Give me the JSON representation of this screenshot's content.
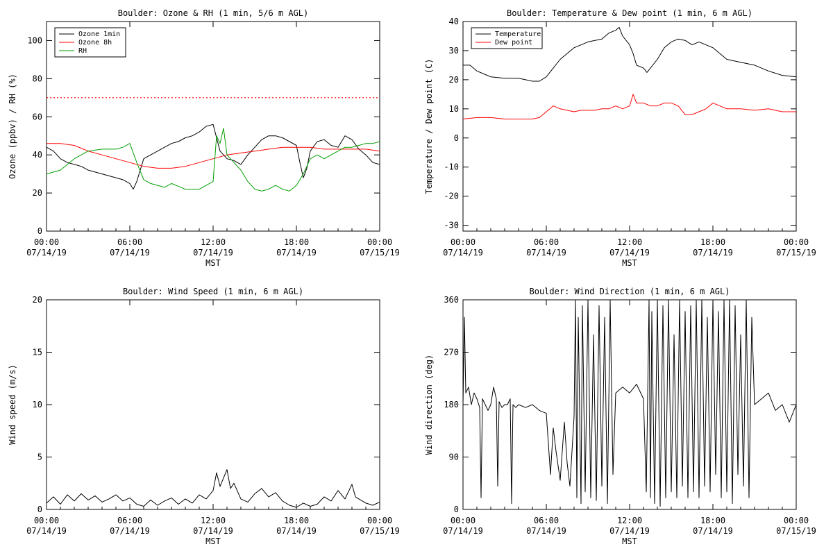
{
  "chart_data": [
    {
      "type": "line",
      "title": "Boulder: Ozone & RH (1 min, 5/6 m AGL)",
      "xlabel": "MST",
      "ylabel": "Ozone (ppbv) / RH (%)",
      "xlim": [
        0,
        24
      ],
      "ylim": [
        0,
        110
      ],
      "yticks": [
        0,
        20,
        40,
        60,
        80,
        100
      ],
      "xticks": [
        0,
        6,
        12,
        18,
        24
      ],
      "xtick_labels": [
        [
          "00:00",
          "07/14/19"
        ],
        [
          "06:00",
          "07/14/19"
        ],
        [
          "12:00",
          "07/14/19"
        ],
        [
          "18:00",
          "07/14/19"
        ],
        [
          "00:00",
          "07/15/19"
        ]
      ],
      "legend_position": "top-left",
      "reference_lines": [
        {
          "y": 70,
          "color": "#ff0000",
          "style": "dotted"
        }
      ],
      "series": [
        {
          "name": "Ozone 1min",
          "color": "#000000",
          "x": [
            0,
            0.5,
            1,
            1.5,
            2,
            2.5,
            3,
            3.5,
            4,
            4.5,
            5,
            5.5,
            6,
            6.25,
            6.5,
            7,
            7.5,
            8,
            8.5,
            9,
            9.5,
            10,
            10.5,
            11,
            11.5,
            12,
            12.5,
            13,
            13.5,
            14,
            14.5,
            15,
            15.5,
            16,
            16.5,
            17,
            17.5,
            18,
            18.25,
            18.5,
            18.75,
            19,
            19.5,
            20,
            20.5,
            21,
            21.5,
            22,
            22.5,
            23,
            23.5,
            24
          ],
          "y": [
            44,
            42,
            38,
            36,
            35,
            34,
            32,
            31,
            30,
            29,
            28,
            27,
            25,
            22,
            26,
            38,
            40,
            42,
            44,
            46,
            47,
            49,
            50,
            52,
            55,
            56,
            42,
            38,
            37,
            35,
            40,
            44,
            48,
            50,
            50,
            49,
            47,
            45,
            36,
            28,
            33,
            42,
            47,
            48,
            45,
            44,
            50,
            48,
            43,
            40,
            36,
            35
          ]
        },
        {
          "name": "Ozone 8h",
          "color": "#ff0000",
          "x": [
            0,
            1,
            2,
            3,
            4,
            5,
            6,
            7,
            8,
            9,
            10,
            11,
            12,
            13,
            14,
            15,
            16,
            17,
            18,
            19,
            20,
            21,
            22,
            23,
            24
          ],
          "y": [
            46,
            46,
            45,
            42,
            40,
            38,
            36,
            34,
            33,
            33,
            34,
            36,
            38,
            40,
            41,
            42,
            43,
            44,
            44,
            44,
            43,
            43,
            43,
            43,
            42
          ]
        },
        {
          "name": "RH",
          "color": "#00a000",
          "x": [
            0,
            1,
            2,
            3,
            4,
            5,
            5.5,
            6,
            6.5,
            7,
            7.5,
            8,
            8.5,
            9,
            10,
            11,
            11.5,
            12,
            12.25,
            12.5,
            12.75,
            13,
            13.5,
            14,
            14.5,
            15,
            15.5,
            16,
            16.5,
            17,
            17.5,
            18,
            18.5,
            19,
            19.5,
            20,
            20.5,
            21,
            21.5,
            22,
            22.5,
            23,
            23.5,
            24
          ],
          "y": [
            30,
            32,
            38,
            42,
            43,
            43,
            44,
            46,
            36,
            27,
            25,
            24,
            23,
            25,
            22,
            22,
            24,
            26,
            50,
            46,
            54,
            40,
            36,
            32,
            26,
            22,
            21,
            22,
            24,
            22,
            21,
            24,
            30,
            38,
            40,
            38,
            40,
            42,
            44,
            44,
            45,
            46,
            46,
            47
          ]
        }
      ]
    },
    {
      "type": "line",
      "title": "Boulder: Temperature & Dew point (1 min, 6 m AGL)",
      "xlabel": "MST",
      "ylabel": "Temperature / Dew point (C)",
      "xlim": [
        0,
        24
      ],
      "ylim": [
        -32,
        40
      ],
      "yticks": [
        -30,
        -20,
        -10,
        0,
        10,
        20,
        30,
        40
      ],
      "xticks": [
        0,
        6,
        12,
        18,
        24
      ],
      "xtick_labels": [
        [
          "00:00",
          "07/14/19"
        ],
        [
          "06:00",
          "07/14/19"
        ],
        [
          "12:00",
          "07/14/19"
        ],
        [
          "18:00",
          "07/14/19"
        ],
        [
          "00:00",
          "07/15/19"
        ]
      ],
      "legend_position": "top-left",
      "series": [
        {
          "name": "Temperature",
          "color": "#000000",
          "x": [
            0,
            0.5,
            1,
            1.5,
            2,
            3,
            4,
            5,
            5.5,
            6,
            6.5,
            7,
            8,
            9,
            10,
            10.5,
            11,
            11.25,
            11.5,
            12,
            12.25,
            12.5,
            13,
            13.25,
            13.5,
            14,
            14.5,
            15,
            15.5,
            16,
            16.5,
            17,
            17.5,
            18,
            18.5,
            19,
            20,
            21,
            22,
            23,
            24
          ],
          "y": [
            25,
            25,
            23,
            22,
            21,
            20.5,
            20.5,
            19.5,
            19.5,
            21,
            24,
            27,
            31,
            33,
            34,
            36,
            37,
            38,
            35,
            32,
            29,
            25,
            24,
            22.5,
            24,
            27,
            31,
            33,
            34,
            33.5,
            32,
            33,
            32,
            31,
            29,
            27,
            26,
            25,
            23,
            21.5,
            21
          ]
        },
        {
          "name": "Dew point",
          "color": "#ff0000",
          "x": [
            0,
            1,
            2,
            3,
            4,
            5,
            5.5,
            6,
            6.5,
            7,
            7.5,
            8,
            8.5,
            9,
            9.5,
            10,
            10.5,
            11,
            11.5,
            12,
            12.25,
            12.5,
            13,
            13.5,
            14,
            14.5,
            15,
            15.5,
            16,
            16.5,
            17,
            17.5,
            18,
            18.5,
            19,
            20,
            21,
            22,
            23,
            24
          ],
          "y": [
            6.5,
            7,
            7,
            6.5,
            6.5,
            6.5,
            7,
            9,
            11,
            10,
            9.5,
            9,
            9.5,
            9.5,
            9.5,
            10,
            10,
            11,
            10,
            11,
            15,
            12,
            12,
            11,
            11,
            12,
            12,
            11,
            8,
            8,
            9,
            10,
            12,
            11,
            10,
            10,
            9.5,
            10,
            9,
            9
          ]
        }
      ]
    },
    {
      "type": "line",
      "title": "Boulder: Wind Speed (1 min, 6 m AGL)",
      "xlabel": "MST",
      "ylabel": "Wind speed (m/s)",
      "xlim": [
        0,
        24
      ],
      "ylim": [
        0,
        20
      ],
      "yticks": [
        0,
        5,
        10,
        15,
        20
      ],
      "xticks": [
        0,
        6,
        12,
        18,
        24
      ],
      "xtick_labels": [
        [
          "00:00",
          "07/14/19"
        ],
        [
          "06:00",
          "07/14/19"
        ],
        [
          "12:00",
          "07/14/19"
        ],
        [
          "18:00",
          "07/14/19"
        ],
        [
          "00:00",
          "07/15/19"
        ]
      ],
      "series": [
        {
          "name": "",
          "color": "#000000",
          "x": [
            0,
            0.5,
            1,
            1.5,
            2,
            2.5,
            3,
            3.5,
            4,
            4.5,
            5,
            5.5,
            6,
            6.5,
            7,
            7.5,
            8,
            8.5,
            9,
            9.5,
            10,
            10.5,
            11,
            11.5,
            12,
            12.25,
            12.5,
            12.75,
            13,
            13.25,
            13.5,
            14,
            14.5,
            15,
            15.5,
            16,
            16.5,
            17,
            17.5,
            18,
            18.5,
            19,
            19.5,
            20,
            20.5,
            21,
            21.5,
            22,
            22.25,
            22.5,
            23,
            23.5,
            24
          ],
          "y": [
            0.6,
            1.2,
            0.5,
            1.4,
            0.8,
            1.5,
            0.9,
            1.3,
            0.7,
            1.0,
            1.4,
            0.8,
            1.1,
            0.5,
            0.3,
            0.9,
            0.4,
            0.8,
            1.1,
            0.5,
            1.0,
            0.6,
            1.4,
            1.0,
            1.8,
            3.5,
            2.2,
            3.0,
            3.8,
            2.0,
            2.5,
            1.0,
            0.7,
            1.5,
            2.0,
            1.2,
            1.6,
            0.8,
            0.4,
            0.2,
            0.6,
            0.3,
            0.5,
            1.2,
            0.8,
            1.8,
            1.0,
            2.4,
            1.2,
            1.0,
            0.6,
            0.4,
            0.7
          ]
        }
      ]
    },
    {
      "type": "line",
      "title": "Boulder: Wind Direction (1 min, 6 m AGL)",
      "xlabel": "MST",
      "ylabel": "Wind direction (deg)",
      "xlim": [
        0,
        24
      ],
      "ylim": [
        0,
        360
      ],
      "yticks": [
        0,
        90,
        180,
        270,
        360
      ],
      "xticks": [
        0,
        6,
        12,
        18,
        24
      ],
      "xtick_labels": [
        [
          "00:00",
          "07/14/19"
        ],
        [
          "06:00",
          "07/14/19"
        ],
        [
          "12:00",
          "07/14/19"
        ],
        [
          "18:00",
          "07/14/19"
        ],
        [
          "00:00",
          "07/15/19"
        ]
      ],
      "series": [
        {
          "name": "",
          "color": "#000000",
          "x": [
            0,
            0.1,
            0.2,
            0.4,
            0.6,
            0.8,
            1,
            1.2,
            1.3,
            1.4,
            1.6,
            1.8,
            2,
            2.2,
            2.4,
            2.5,
            2.6,
            2.8,
            3,
            3.2,
            3.4,
            3.5,
            3.6,
            3.8,
            4,
            4.5,
            5,
            5.5,
            6,
            6.1,
            6.3,
            6.5,
            6.7,
            7,
            7.3,
            7.5,
            7.7,
            8,
            8.1,
            8.2,
            8.3,
            8.5,
            8.6,
            8.8,
            9,
            9.2,
            9.4,
            9.6,
            9.8,
            10,
            10.2,
            10.4,
            10.6,
            10.8,
            11,
            11.5,
            12,
            12.5,
            13,
            13.2,
            13.4,
            13.5,
            13.6,
            13.8,
            14,
            14.2,
            14.4,
            14.6,
            14.8,
            15,
            15.2,
            15.4,
            15.6,
            15.8,
            16,
            16.2,
            16.4,
            16.6,
            16.8,
            17,
            17.2,
            17.4,
            17.6,
            17.8,
            18,
            18.2,
            18.4,
            18.6,
            18.8,
            19,
            19.2,
            19.4,
            19.6,
            19.8,
            20,
            20.2,
            20.4,
            20.6,
            20.8,
            21,
            21.5,
            22,
            22.5,
            23,
            23.5,
            24
          ],
          "y": [
            180,
            330,
            200,
            210,
            180,
            200,
            190,
            175,
            20,
            190,
            180,
            170,
            180,
            210,
            190,
            40,
            185,
            175,
            180,
            180,
            190,
            10,
            180,
            175,
            180,
            175,
            180,
            170,
            165,
            130,
            60,
            140,
            100,
            50,
            150,
            80,
            40,
            160,
            360,
            20,
            330,
            10,
            350,
            30,
            360,
            20,
            300,
            15,
            350,
            40,
            330,
            10,
            360,
            60,
            200,
            210,
            200,
            215,
            190,
            30,
            360,
            20,
            340,
            10,
            360,
            5,
            350,
            20,
            360,
            30,
            300,
            20,
            360,
            40,
            340,
            20,
            350,
            30,
            360,
            20,
            360,
            40,
            330,
            30,
            360,
            60,
            340,
            20,
            360,
            30,
            360,
            10,
            350,
            60,
            300,
            40,
            360,
            20,
            330,
            180,
            190,
            200,
            170,
            180,
            150,
            180
          ]
        }
      ]
    }
  ]
}
